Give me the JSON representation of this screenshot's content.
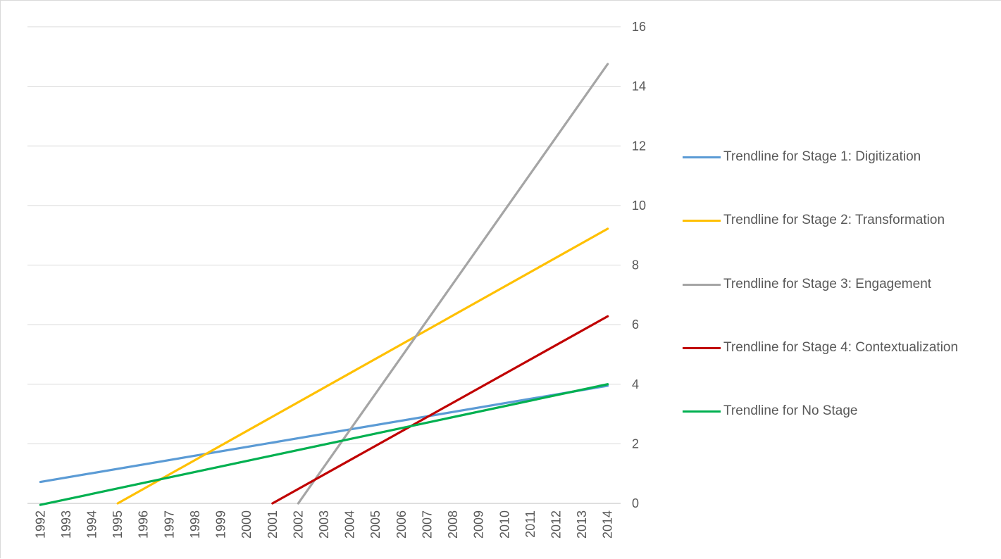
{
  "chart_data": {
    "type": "line",
    "title": "",
    "xlabel": "",
    "ylabel": "",
    "categories": [
      "1992",
      "1993",
      "1994",
      "1995",
      "1996",
      "1997",
      "1998",
      "1999",
      "2000",
      "2001",
      "2002",
      "2003",
      "2004",
      "2005",
      "2006",
      "2007",
      "2008",
      "2009",
      "2010",
      "2011",
      "2012",
      "2013",
      "2014"
    ],
    "ylim": [
      0,
      16
    ],
    "yticks": [
      "0",
      "2",
      "4",
      "6",
      "8",
      "10",
      "12",
      "14",
      "16"
    ],
    "y_axis_position": "right",
    "grid": true,
    "legend_position": "right",
    "series": [
      {
        "name": "Trendline for Stage 1: Digitization",
        "color": "#5b9bd5",
        "start": [
          "1992",
          0.72
        ],
        "end": [
          "2014",
          3.95
        ]
      },
      {
        "name": "Trendline for Stage 2: Transformation",
        "color": "#ffc000",
        "start": [
          "1995",
          0.0
        ],
        "end": [
          "2014",
          9.22
        ]
      },
      {
        "name": "Trendline for Stage 3: Engagement",
        "color": "#a5a5a5",
        "start": [
          "2002",
          0.0
        ],
        "end": [
          "2014",
          14.75
        ]
      },
      {
        "name": "Trendline for Stage 4: Contextualization",
        "color": "#c00000",
        "start": [
          "2001",
          0.0
        ],
        "end": [
          "2014",
          6.28
        ]
      },
      {
        "name": "Trendline for No Stage",
        "color": "#00b050",
        "start": [
          "1992",
          -0.05
        ],
        "end": [
          "2014",
          4.0
        ]
      }
    ]
  }
}
